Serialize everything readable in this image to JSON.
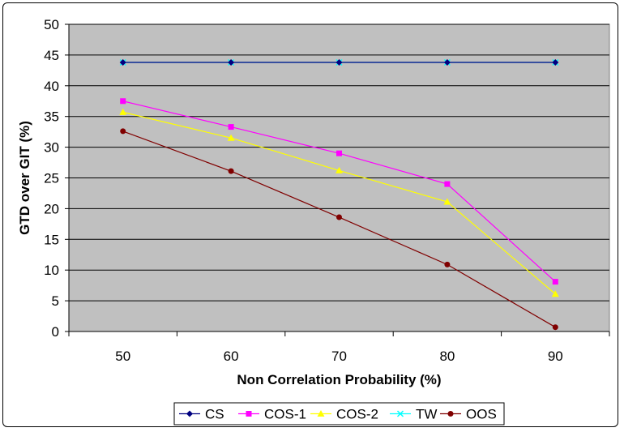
{
  "chart_data": {
    "type": "line",
    "xlabel": "Non Correlation Probability (%)",
    "ylabel": "GTD over GIT (%)",
    "categories": [
      "50",
      "60",
      "70",
      "80",
      "90"
    ],
    "ylim": [
      0,
      50
    ],
    "yticks": [
      "0",
      "5",
      "10",
      "15",
      "20",
      "25",
      "30",
      "35",
      "40",
      "45",
      "50"
    ],
    "grid": "horizontal",
    "plot_background": "#c0c0c0",
    "legend_position": "bottom",
    "series": [
      {
        "name": "CS",
        "values": [
          43.8,
          43.8,
          43.8,
          43.8,
          43.8
        ],
        "color": "#000080",
        "marker": "diamond"
      },
      {
        "name": "COS-1",
        "values": [
          37.5,
          33.3,
          29.0,
          24.0,
          8.1
        ],
        "color": "#ff00ff",
        "marker": "square"
      },
      {
        "name": "COS-2",
        "values": [
          35.7,
          31.5,
          26.2,
          21.1,
          6.1
        ],
        "color": "#ffff00",
        "marker": "triangle"
      },
      {
        "name": "TW",
        "values": [
          43.8,
          43.8,
          43.8,
          43.8,
          43.8
        ],
        "color": "#00ffff",
        "marker": "x"
      },
      {
        "name": "OOS",
        "values": [
          32.6,
          26.1,
          18.6,
          10.9,
          0.7
        ],
        "color": "#800000",
        "marker": "circle"
      }
    ]
  }
}
